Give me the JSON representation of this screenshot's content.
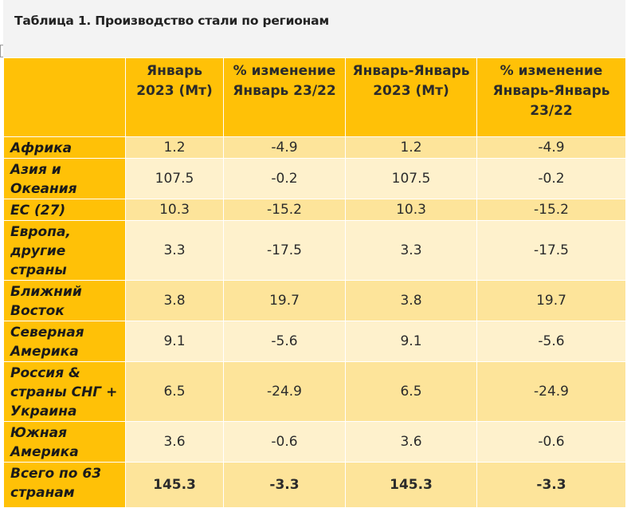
{
  "title": "Таблица 1. Производство стали по регионам",
  "columns": [
    "",
    "Январь 2023 (Мт)",
    "% изменение Январь 23/22",
    "Январь-Январь 2023 (Мт)",
    "% изменение Январь-Январь 23/22"
  ],
  "rows": [
    {
      "region": "Африка",
      "v1": "1.2",
      "v2": "-4.9",
      "v3": "1.2",
      "v4": "-4.9"
    },
    {
      "region": "Азия и Океания",
      "v1": "107.5",
      "v2": "-0.2",
      "v3": "107.5",
      "v4": "-0.2"
    },
    {
      "region": "ЕС (27)",
      "v1": "10.3",
      "v2": "-15.2",
      "v3": "10.3",
      "v4": "-15.2"
    },
    {
      "region": "Европа, другие страны",
      "v1": "3.3",
      "v2": "-17.5",
      "v3": "3.3",
      "v4": "-17.5"
    },
    {
      "region": "Ближний Восток",
      "v1": "3.8",
      "v2": "19.7",
      "v3": "3.8",
      "v4": "19.7"
    },
    {
      "region": "Северная Америка",
      "v1": "9.1",
      "v2": "-5.6",
      "v3": "9.1",
      "v4": "-5.6"
    },
    {
      "region": "Россия & страны СНГ + Украина",
      "v1": "6.5",
      "v2": "-24.9",
      "v3": "6.5",
      "v4": "-24.9"
    },
    {
      "region": "Южная Америка",
      "v1": "3.6",
      "v2": "-0.6",
      "v3": "3.6",
      "v4": "-0.6"
    },
    {
      "region": "Всего по 63 странам",
      "v1": "145.3",
      "v2": "-3.3",
      "v3": "145.3",
      "v4": "-3.3"
    }
  ],
  "colors": {
    "header": "#ffc107",
    "row_dark": "#fde49a",
    "row_light": "#fef1cc"
  }
}
